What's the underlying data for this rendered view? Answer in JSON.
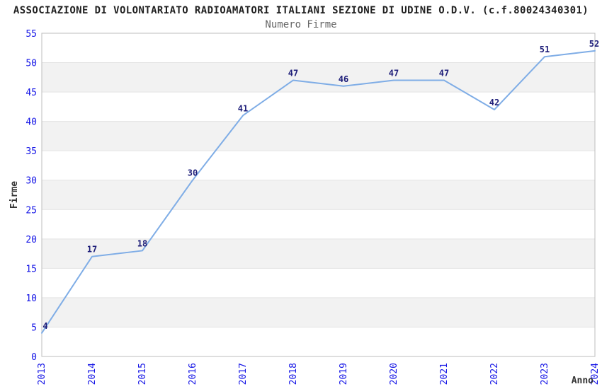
{
  "chart_data": {
    "type": "line",
    "title": "ASSOCIAZIONE DI VOLONTARIATO RADIOAMATORI ITALIANI SEZIONE DI UDINE O.D.V. (c.f.80024340301)",
    "subtitle": "Numero Firme",
    "xlabel": "Anno",
    "ylabel": "Firme",
    "x": [
      "2013",
      "2014",
      "2015",
      "2016",
      "2017",
      "2018",
      "2019",
      "2020",
      "2021",
      "2022",
      "2023",
      "2024"
    ],
    "series": [
      {
        "name": "Numero Firme",
        "values": [
          4,
          17,
          18,
          30,
          41,
          47,
          46,
          47,
          47,
          42,
          51,
          52
        ]
      }
    ],
    "ylim": [
      0,
      55
    ],
    "ytick_step": 5,
    "grid": true,
    "banded_background": true,
    "legend_position": "none",
    "colors": {
      "line": "#7fade6",
      "band": "#f2f2f2",
      "grid": "#e3e3e3",
      "frame": "#bdbdbd",
      "tick_label": "#1414e6",
      "value_label": "#1c1c78",
      "title": "#1f1f1f",
      "subtitle": "#666666",
      "axis_label": "#333333"
    }
  }
}
